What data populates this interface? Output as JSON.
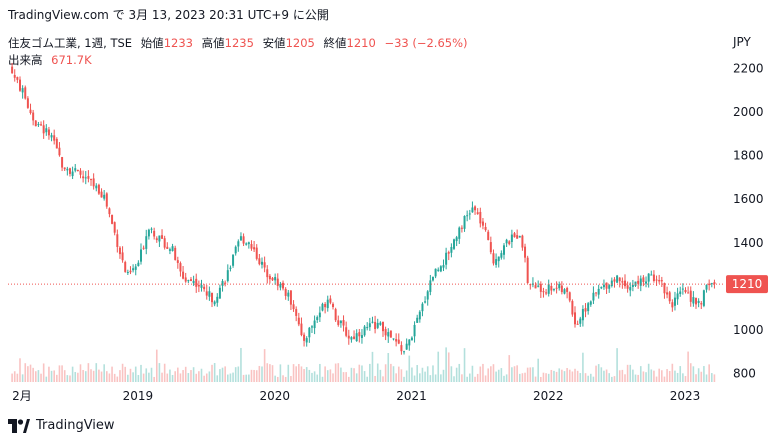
{
  "header": {
    "caption": "TradingView.com で 3月 13, 2023 20:31 UTC+9 に公開"
  },
  "legend": {
    "symbol": "住友ゴム工業, 1週, TSE",
    "open_label": "始値",
    "open": "1233",
    "high_label": "高値",
    "high": "1235",
    "low_label": "安値",
    "low": "1205",
    "close_label": "終値",
    "close": "1210",
    "change": "−33 (−2.65%)",
    "volume_label": "出来高",
    "volume": "671.7K"
  },
  "currency": "JPY",
  "footer": {
    "brand": "TradingView"
  },
  "colors": {
    "up": "#26a69a",
    "down": "#ef5350",
    "last_price": "#ef5350",
    "text": "#131722"
  },
  "chart_data": {
    "type": "candlestick",
    "interval": "1週",
    "y_ticks": [
      "2200",
      "2000",
      "1800",
      "1600",
      "1400",
      "1200",
      "1000",
      "800"
    ],
    "ylim": [
      760,
      2240
    ],
    "x_ticks": [
      {
        "label": "2月",
        "t": 2018.08
      },
      {
        "label": "2019",
        "t": 2019.0
      },
      {
        "label": "2020",
        "t": 2020.0
      },
      {
        "label": "2021",
        "t": 2021.0
      },
      {
        "label": "2022",
        "t": 2022.0
      },
      {
        "label": "2023",
        "t": 2023.0
      }
    ],
    "xlim": [
      2018.05,
      2023.27
    ],
    "last_price": 1210,
    "last_price_label": "1210",
    "price_path": [
      [
        2018.08,
        2180
      ],
      [
        2018.15,
        2100
      ],
      [
        2018.25,
        1950
      ],
      [
        2018.35,
        1900
      ],
      [
        2018.45,
        1760
      ],
      [
        2018.55,
        1720
      ],
      [
        2018.65,
        1680
      ],
      [
        2018.75,
        1620
      ],
      [
        2018.85,
        1400
      ],
      [
        2018.92,
        1240
      ],
      [
        2019.0,
        1300
      ],
      [
        2019.08,
        1480
      ],
      [
        2019.15,
        1420
      ],
      [
        2019.25,
        1370
      ],
      [
        2019.32,
        1240
      ],
      [
        2019.42,
        1220
      ],
      [
        2019.55,
        1140
      ],
      [
        2019.65,
        1250
      ],
      [
        2019.75,
        1420
      ],
      [
        2019.82,
        1400
      ],
      [
        2019.92,
        1280
      ],
      [
        2020.05,
        1200
      ],
      [
        2020.15,
        1100
      ],
      [
        2020.2,
        940
      ],
      [
        2020.3,
        1050
      ],
      [
        2020.4,
        1160
      ],
      [
        2020.45,
        1050
      ],
      [
        2020.55,
        960
      ],
      [
        2020.65,
        1000
      ],
      [
        2020.75,
        1030
      ],
      [
        2020.85,
        960
      ],
      [
        2020.95,
        900
      ],
      [
        2021.05,
        1050
      ],
      [
        2021.15,
        1250
      ],
      [
        2021.25,
        1330
      ],
      [
        2021.35,
        1470
      ],
      [
        2021.45,
        1560
      ],
      [
        2021.52,
        1480
      ],
      [
        2021.6,
        1320
      ],
      [
        2021.7,
        1400
      ],
      [
        2021.8,
        1450
      ],
      [
        2021.85,
        1220
      ],
      [
        2021.95,
        1180
      ],
      [
        2022.05,
        1200
      ],
      [
        2022.15,
        1160
      ],
      [
        2022.2,
        1020
      ],
      [
        2022.3,
        1130
      ],
      [
        2022.4,
        1200
      ],
      [
        2022.5,
        1240
      ],
      [
        2022.6,
        1200
      ],
      [
        2022.7,
        1230
      ],
      [
        2022.8,
        1250
      ],
      [
        2022.9,
        1120
      ],
      [
        2023.0,
        1180
      ],
      [
        2023.1,
        1110
      ],
      [
        2023.18,
        1220
      ],
      [
        2023.22,
        1210
      ]
    ]
  }
}
